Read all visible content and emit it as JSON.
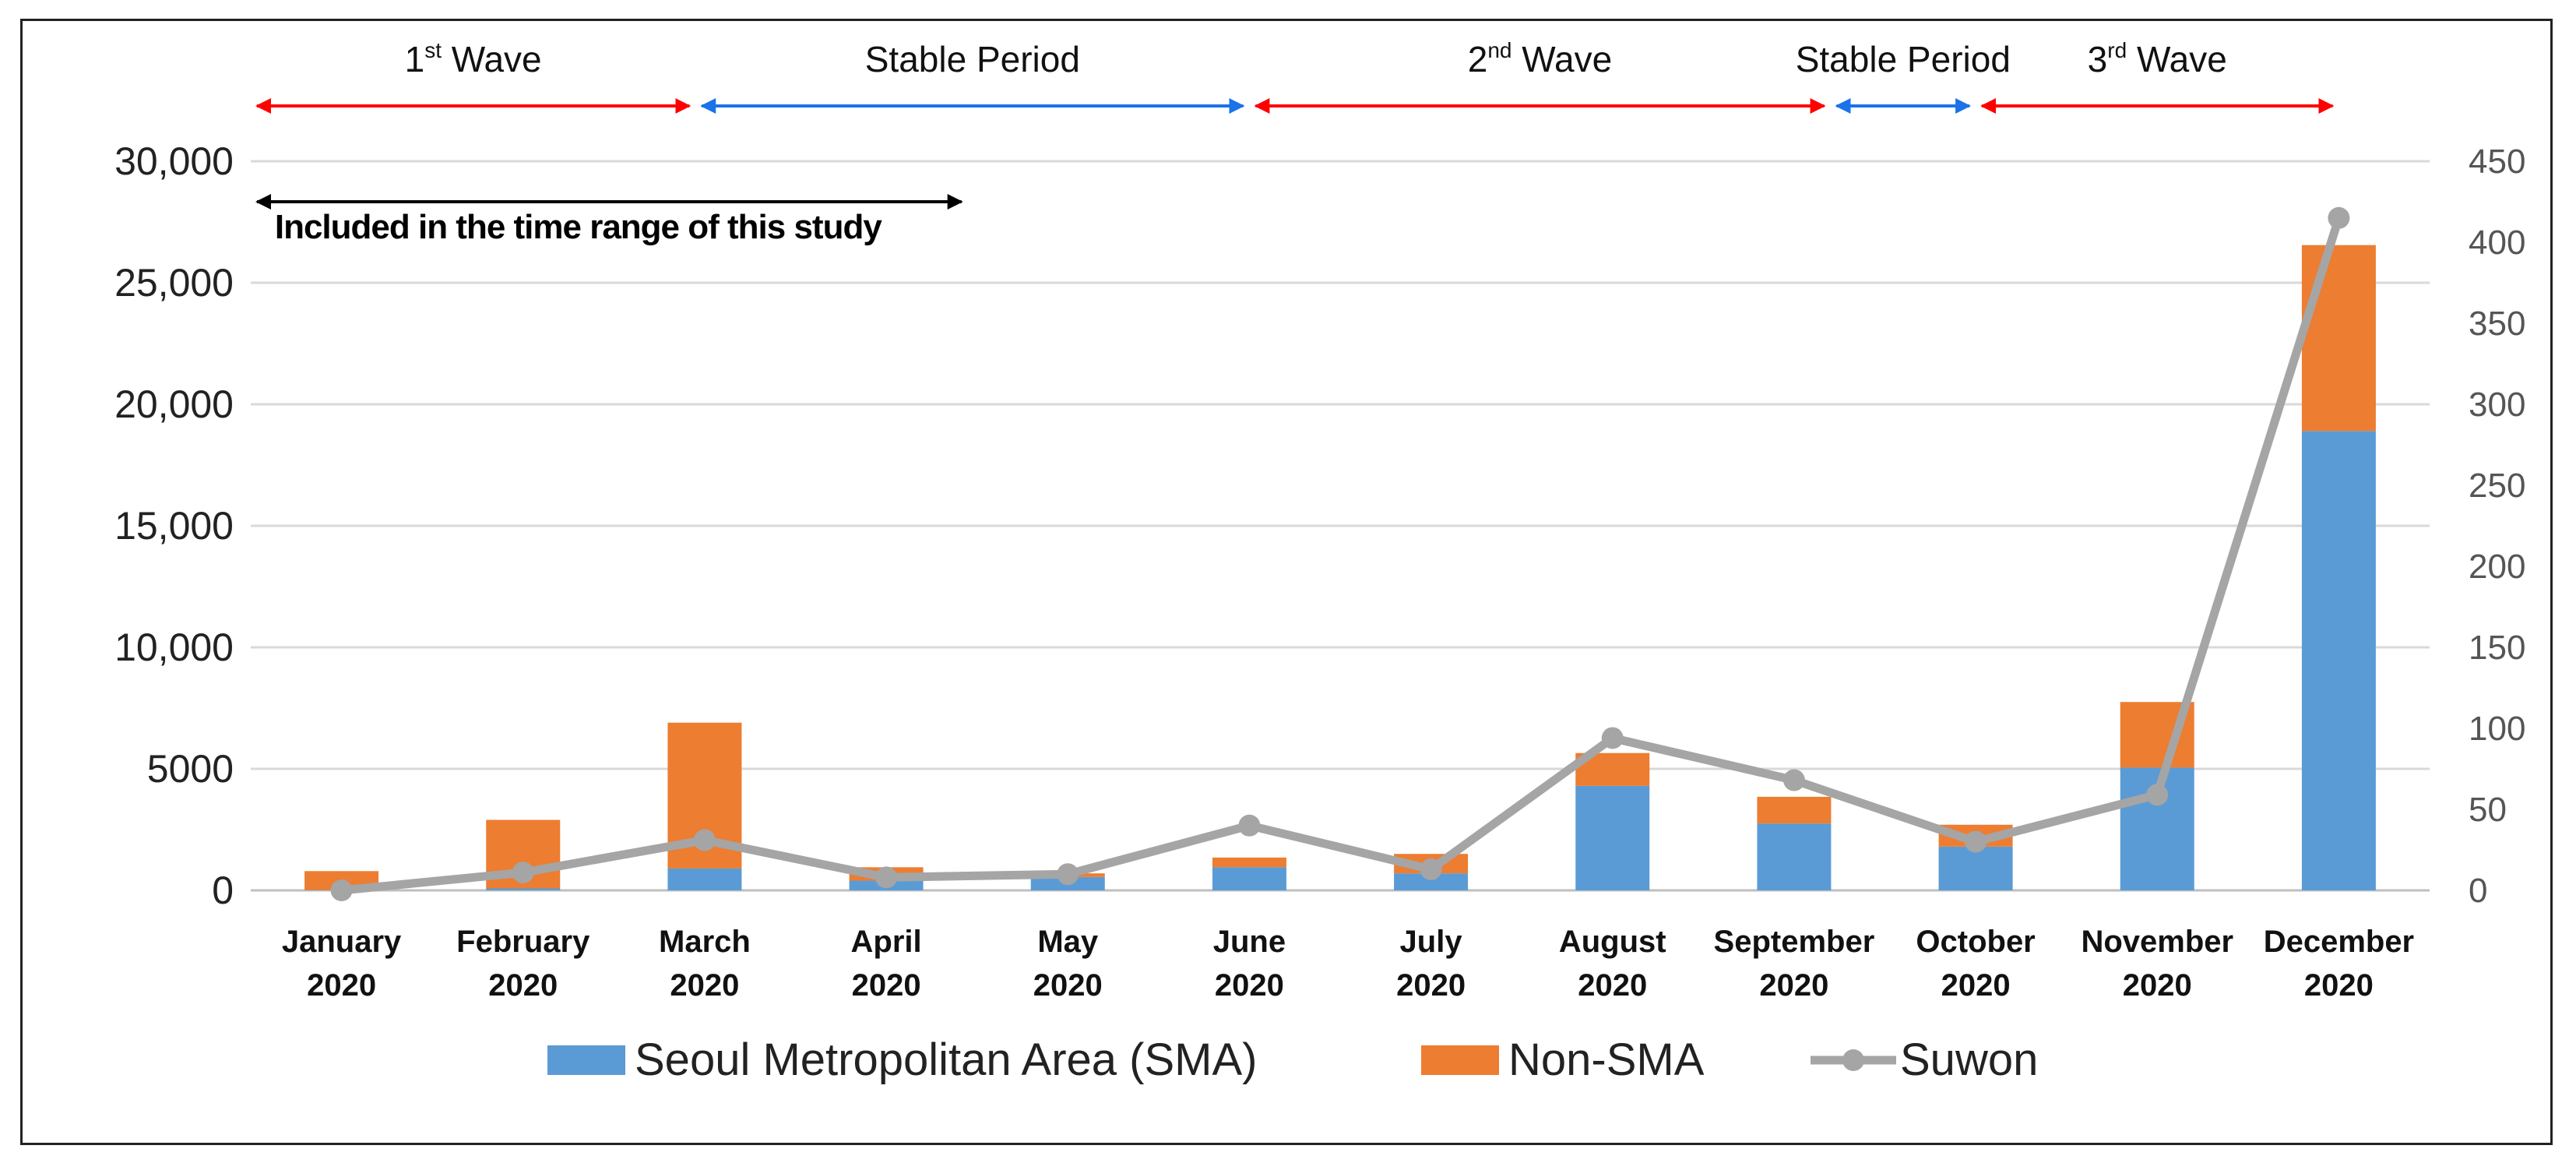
{
  "chart_data": {
    "type": "bar",
    "stacked": true,
    "title": "",
    "categories": [
      [
        "January",
        "2020"
      ],
      [
        "February",
        "2020"
      ],
      [
        "March",
        "2020"
      ],
      [
        "April",
        "2020"
      ],
      [
        "May",
        "2020"
      ],
      [
        "June",
        "2020"
      ],
      [
        "July",
        "2020"
      ],
      [
        "August",
        "2020"
      ],
      [
        "September",
        "2020"
      ],
      [
        "October",
        "2020"
      ],
      [
        "November",
        "2020"
      ],
      [
        "December",
        "2020"
      ]
    ],
    "series": [
      {
        "name": "Seoul Metropolitan Area (SMA)",
        "axis": "left",
        "color": "#5b9bd5",
        "values": [
          12,
          80,
          900,
          400,
          550,
          950,
          700,
          4300,
          2750,
          1800,
          5050,
          18900
        ]
      },
      {
        "name": "Non-SMA",
        "axis": "left",
        "color": "#ed7d31",
        "values": [
          780,
          2820,
          6000,
          550,
          150,
          400,
          800,
          1350,
          1100,
          900,
          2700,
          7650
        ]
      },
      {
        "name": "Suwon",
        "type": "line",
        "axis": "right",
        "color": "#a5a5a5",
        "values": [
          0,
          11,
          31,
          8,
          10,
          40,
          13,
          94,
          68,
          30,
          59,
          415
        ]
      }
    ],
    "y_left": {
      "ylim": [
        0,
        30000
      ],
      "ticks": [
        "30,000",
        "25,000",
        "20,000",
        "15,000",
        "10,000",
        "5000",
        "0"
      ],
      "tick_values": [
        30000,
        25000,
        20000,
        15000,
        10000,
        5000,
        0
      ]
    },
    "y_right": {
      "ylim": [
        0,
        450
      ],
      "ticks": [
        "450",
        "400",
        "350",
        "300",
        "250",
        "200",
        "150",
        "100",
        "50",
        "0"
      ],
      "tick_values": [
        450,
        400,
        350,
        300,
        250,
        200,
        150,
        100,
        50,
        0
      ]
    },
    "grid": true,
    "periods": [
      {
        "label": "1",
        "sup": "st",
        "rest": " Wave",
        "color": "#ff0000",
        "from": 0,
        "to": 2.45
      },
      {
        "label": "Stable Period",
        "sup": "",
        "rest": "",
        "color": "#1a73e8",
        "from": 2.45,
        "to": 5.5
      },
      {
        "label": "2",
        "sup": "nd",
        "rest": " Wave",
        "color": "#ff0000",
        "from": 5.5,
        "to": 8.7
      },
      {
        "label": "Stable Period",
        "sup": "",
        "rest": "",
        "color": "#1a73e8",
        "from": 8.7,
        "to": 9.5
      },
      {
        "label": "3",
        "sup": "rd",
        "rest": " Wave",
        "color": "#ff0000",
        "from": 9.5,
        "to": 11.5
      }
    ],
    "annotation": {
      "text": "Included in the time range of this study",
      "from": 0,
      "to": 4.0
    },
    "legend": [
      "Seoul Metropolitan Area (SMA)",
      "Non-SMA",
      "Suwon"
    ],
    "legend_position": "bottom"
  }
}
